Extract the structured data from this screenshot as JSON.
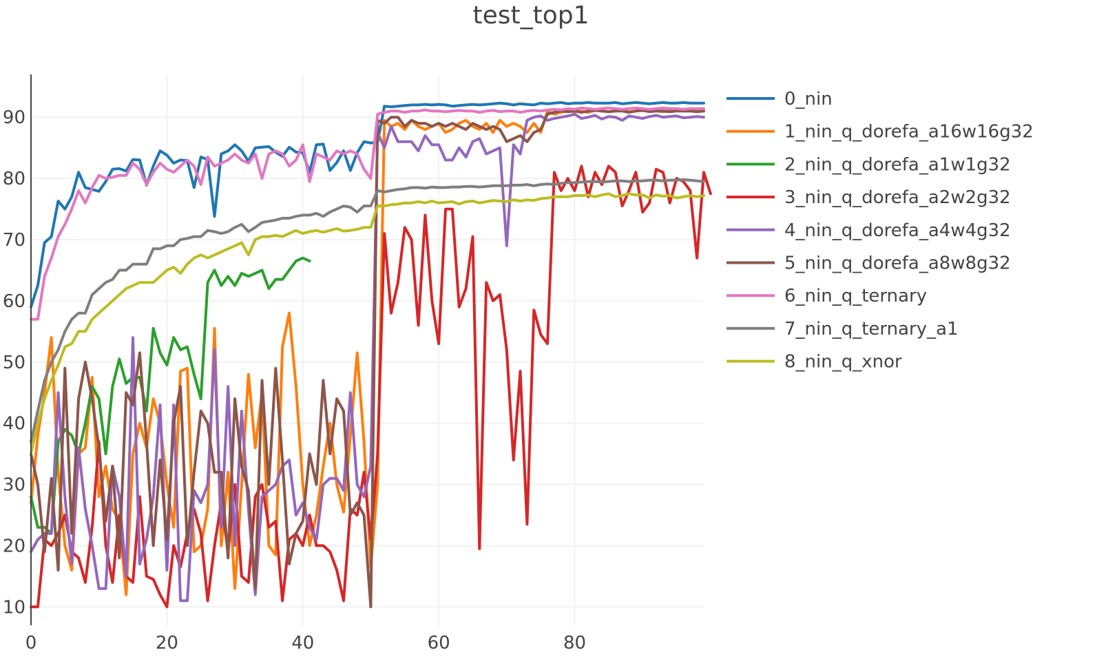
{
  "chart_data": {
    "type": "line",
    "title": "test_top1",
    "xlabel": "",
    "ylabel": "",
    "xlim": [
      0,
      99
    ],
    "ylim": [
      7,
      97
    ],
    "x_ticks": [
      0,
      20,
      40,
      60,
      80
    ],
    "y_ticks": [
      10,
      20,
      30,
      40,
      50,
      60,
      70,
      80,
      90
    ],
    "grid": true,
    "legend_position": "top-right",
    "series": [
      {
        "name": "0_nin",
        "color": "#1f77b4",
        "values": [
          59,
          62.5,
          69.5,
          70.5,
          76.3,
          75,
          77,
          81,
          78.5,
          78.2,
          77.9,
          79.5,
          81.5,
          81.6,
          81.2,
          83.1,
          83,
          78.9,
          82,
          84.5,
          83.8,
          82.5,
          83,
          82.9,
          78.5,
          83.5,
          83.1,
          73.8,
          84,
          84.5,
          85.5,
          84.5,
          82.8,
          85,
          85.1,
          85.2,
          84.3,
          83.6,
          85.1,
          84.3,
          84.2,
          81,
          85.5,
          85.6,
          81.3,
          82.6,
          84.5,
          81.3,
          84.2,
          86,
          85.8,
          85.9,
          91.8,
          91.7,
          91.8,
          91.9,
          92,
          92,
          92.1,
          92,
          92.1,
          92,
          91.8,
          91.9,
          92,
          92.1,
          92,
          92.1,
          92.2,
          92.3,
          92.2,
          92,
          92.2,
          92.1,
          92,
          92.3,
          92.2,
          92.3,
          92.4,
          92.2,
          92.3,
          92.3,
          92.4,
          92.3,
          92.3,
          92.3,
          92.4,
          92.2,
          92.3,
          92.4,
          92.3,
          92.2,
          92.3,
          92.4,
          92.3,
          92.3,
          92.4,
          92.3,
          92.3,
          92.3
        ]
      },
      {
        "name": "1_nin_q_dorefa_a16w16g32",
        "color": "#ff7f0e",
        "values": [
          27,
          38,
          45,
          54,
          32,
          20,
          16,
          35,
          36,
          47.5,
          28,
          33,
          26,
          24,
          12,
          35,
          40,
          36,
          44,
          40,
          30,
          23,
          48.5,
          49,
          19,
          20,
          26,
          55.5,
          20,
          32,
          13,
          30,
          48,
          36,
          45,
          20,
          18.5,
          52.5,
          58,
          46,
          30,
          20,
          25,
          33,
          40,
          30,
          25.5,
          38,
          51.5,
          37,
          16.5,
          30,
          89.5,
          88.5,
          89,
          88,
          89.5,
          88.5,
          88,
          88.5,
          89,
          87.5,
          88,
          89,
          89.5,
          88.5,
          88,
          89,
          87.5,
          89.5,
          88.5,
          89,
          88.5,
          87.5,
          89,
          87.5,
          91,
          90.5,
          90.8,
          91,
          90.9,
          91,
          90.8,
          91.1,
          91,
          90.9,
          91,
          91.1,
          90.9,
          91,
          91.1,
          91,
          91,
          90.9,
          91,
          91.1,
          91,
          91,
          91,
          91
        ]
      },
      {
        "name": "2_nin_q_dorefa_a1w1g32",
        "color": "#2ca02c",
        "values": [
          28,
          23,
          23,
          22,
          37,
          39,
          38,
          35,
          40,
          46,
          44,
          35,
          46,
          50.5,
          46.5,
          47.5,
          47.5,
          42,
          55.5,
          51.5,
          49.5,
          54,
          52,
          52.5,
          48,
          44,
          63,
          65,
          62.5,
          64,
          62.5,
          64.5,
          64,
          64.5,
          65,
          62,
          63.5,
          63.5,
          65,
          66.5,
          67,
          66.5
        ]
      },
      {
        "name": "3_nin_q_dorefa_a2w2g32",
        "color": "#d62728",
        "values": [
          10,
          10,
          21,
          20,
          22,
          25,
          19,
          18,
          14,
          23,
          37,
          20,
          14,
          25,
          15,
          14,
          28,
          15,
          14.5,
          12,
          10,
          20,
          16.5,
          22,
          26,
          22,
          11,
          20,
          27,
          19,
          30,
          15,
          14,
          28,
          30,
          23,
          24,
          11,
          21,
          22,
          20,
          25,
          20,
          20,
          19,
          16,
          11,
          26,
          25,
          32,
          21,
          35,
          71,
          58,
          63,
          72,
          70,
          56,
          74,
          60,
          53,
          75,
          75,
          59,
          62,
          70.5,
          19.5,
          63,
          60,
          61,
          52,
          34,
          48.5,
          23.5,
          58.5,
          54.5,
          53,
          81,
          78,
          80,
          78,
          82,
          77,
          81,
          79,
          82,
          81,
          75.5,
          78,
          81,
          74.5,
          76,
          81.5,
          81,
          76,
          80,
          79.5,
          78,
          67,
          81,
          77.5
        ]
      },
      {
        "name": "4_nin_q_dorefa_a4w4g32",
        "color": "#9467bd",
        "values": [
          19,
          21,
          22,
          22,
          45,
          28,
          17,
          36,
          26,
          20,
          13,
          13,
          33,
          28,
          15,
          54,
          17,
          21,
          28,
          43,
          16,
          43,
          11,
          11,
          29,
          27,
          30,
          52,
          23,
          46,
          20,
          42,
          26,
          12,
          28,
          29,
          30,
          33,
          34,
          25,
          27,
          23,
          21,
          30,
          31,
          31,
          29,
          45,
          30,
          28,
          33,
          87.5,
          85,
          88.5,
          86,
          86,
          86,
          84.5,
          87,
          85.5,
          85.5,
          83,
          83,
          85,
          83.5,
          86,
          86.5,
          84,
          84.5,
          85,
          69,
          85.5,
          84,
          89.5,
          90,
          90.2,
          89.5,
          89.8,
          90,
          90.2,
          90.5,
          89.8,
          90,
          90.3,
          89.7,
          90.1,
          90,
          89.5,
          90.2,
          90,
          89.8,
          90.1,
          90.3,
          90,
          90.1,
          90.2,
          89.9,
          90,
          90.1,
          90
        ]
      },
      {
        "name": "5_nin_q_dorefa_a8w8g32",
        "color": "#8c564b",
        "values": [
          35,
          30,
          19,
          31,
          16,
          49,
          22,
          44,
          50,
          44,
          36,
          24,
          33,
          18,
          45,
          43,
          51.5,
          37,
          20,
          34,
          21,
          40,
          46,
          20,
          32,
          42,
          40,
          32,
          32,
          18,
          44,
          33,
          29,
          13,
          47,
          30,
          49,
          34,
          17,
          22,
          24,
          35,
          30,
          47,
          35,
          44,
          42,
          25,
          27,
          25,
          10,
          89.5,
          89,
          90,
          90,
          88.5,
          89.5,
          89,
          89,
          88.5,
          89,
          88.5,
          89,
          88.5,
          88,
          89,
          88.5,
          88,
          88.5,
          88,
          86,
          86.5,
          87,
          86,
          87.5,
          88,
          90.5,
          90.8,
          91,
          90.9,
          91,
          90.8,
          91,
          91.1,
          91,
          90.9,
          91,
          91,
          90.8,
          91,
          91.1,
          90.9,
          91,
          91,
          90.9,
          91,
          91,
          91,
          90.9,
          91
        ]
      },
      {
        "name": "6_nin_q_ternary",
        "color": "#e377c2",
        "values": [
          57,
          57,
          64,
          67,
          70.5,
          72.5,
          75,
          78,
          76,
          78.5,
          80.5,
          80,
          80.2,
          80.5,
          80.5,
          82.5,
          81.5,
          79,
          81,
          82.5,
          81.5,
          81,
          82,
          83,
          82,
          79,
          83.5,
          82,
          82.5,
          83,
          84,
          83,
          82.5,
          84,
          80,
          84,
          84.5,
          84,
          82,
          83,
          85.5,
          79.5,
          84,
          83.5,
          83,
          84.5,
          84,
          84.5,
          84,
          81.5,
          80,
          90.5,
          90.8,
          91,
          91,
          90.8,
          91,
          91,
          91.2,
          91,
          91,
          90.9,
          91,
          91.1,
          91,
          91,
          90.8,
          91,
          91.1,
          90.9,
          91,
          91,
          90.8,
          91,
          91.1,
          91,
          91.2,
          91.3,
          91.2,
          91.4,
          91.3,
          91.5,
          91.4,
          91.3,
          91.4,
          91.5,
          91.4,
          91.3,
          91.4,
          91.5,
          91.4,
          91.3,
          91.4,
          91.5,
          91.4,
          91.4,
          91.3,
          91.4,
          91.4,
          91.4
        ]
      },
      {
        "name": "7_nin_q_ternary_a1",
        "color": "#7f7f7f",
        "values": [
          37,
          42,
          47,
          50,
          52,
          55,
          57,
          58,
          58,
          61,
          62,
          63,
          63.5,
          65,
          65,
          66,
          66,
          66,
          68.5,
          68.5,
          69,
          69,
          70,
          70.2,
          70.5,
          70.5,
          71.5,
          71.3,
          71,
          71.3,
          72,
          72.5,
          71.3,
          72,
          72.8,
          73,
          73.2,
          73.5,
          73.5,
          73.8,
          74,
          74,
          74.3,
          73.8,
          74.5,
          75,
          75.5,
          75.3,
          74.5,
          75.5,
          75.5,
          78,
          77.8,
          78,
          78.2,
          78.3,
          78.5,
          78.5,
          78.4,
          78.6,
          78.5,
          78.5,
          78.6,
          78.6,
          78.7,
          78.7,
          78.6,
          78.7,
          78.8,
          78.8,
          78.8,
          78.9,
          78.9,
          79,
          78.8,
          79,
          79.1,
          79,
          79.2,
          79.3,
          79.3,
          79.4,
          79.5,
          79.5,
          79.4,
          79.5,
          79.6,
          79.6,
          79.5,
          79.6,
          79.6,
          79.7,
          79.7,
          79.6,
          79.7,
          79.7,
          79.8,
          79.7,
          79.6,
          79.5
        ]
      },
      {
        "name": "8_nin_q_xnor",
        "color": "#bcbd22",
        "values": [
          35,
          40,
          44,
          47,
          49.5,
          52.5,
          53,
          55,
          55,
          57,
          58,
          59,
          60,
          61,
          62,
          62.5,
          63,
          63,
          63,
          64,
          65,
          65.5,
          64.5,
          66,
          67,
          67.5,
          67,
          67.5,
          68,
          68.5,
          69,
          69.5,
          67.5,
          70,
          70.5,
          70.5,
          70.7,
          70.5,
          71,
          71.5,
          71,
          71.3,
          71.5,
          71.2,
          71.5,
          71.8,
          71.4,
          71.5,
          71.7,
          72,
          72,
          75.5,
          75.5,
          75.7,
          75.8,
          76,
          76,
          76.2,
          76,
          76.3,
          76,
          76.1,
          76.2,
          75.8,
          76.2,
          76.3,
          76,
          76.2,
          76.4,
          76.3,
          76.2,
          76.5,
          76.3,
          76.5,
          76.4,
          76.7,
          76.8,
          77,
          77,
          77,
          77.2,
          77.2,
          77.3,
          77,
          77.3,
          77.5,
          77,
          77.2,
          77.5,
          77.3,
          77.3,
          76.8,
          77.3,
          77.1,
          77.2,
          76.8,
          77,
          77.2,
          77,
          77.2
        ]
      }
    ]
  }
}
